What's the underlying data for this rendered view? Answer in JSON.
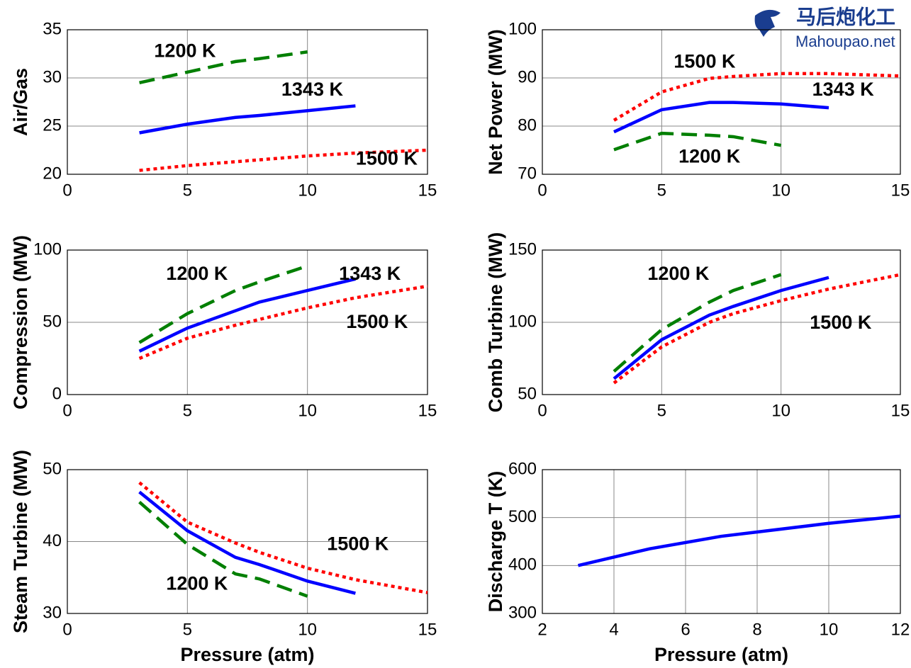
{
  "watermark": {
    "title": "马后炮化工",
    "url": "Mahoupao.net"
  },
  "chart_data": [
    {
      "type": "line",
      "ylabel": "Air/Gas",
      "x": [
        3,
        5,
        7,
        8,
        10,
        12,
        15
      ],
      "xlim": [
        0,
        15
      ],
      "xticks": [
        0,
        5,
        10,
        15
      ],
      "ylim": [
        20,
        35
      ],
      "yticks": [
        20,
        25,
        30,
        35
      ],
      "grid": true,
      "series": [
        {
          "name": "1200 K",
          "color": "#007f00",
          "style": "dashed",
          "values": [
            29.5,
            30.6,
            31.7,
            32.0,
            32.7,
            null,
            null
          ]
        },
        {
          "name": "1343 K",
          "color": "#0000ff",
          "style": "solid",
          "values": [
            24.3,
            25.2,
            25.9,
            26.1,
            26.6,
            27.1,
            null
          ]
        },
        {
          "name": "1500 K",
          "color": "#ff0000",
          "style": "dotted",
          "values": [
            20.4,
            20.9,
            21.3,
            21.5,
            21.9,
            22.2,
            22.5
          ]
        }
      ]
    },
    {
      "type": "line",
      "ylabel": "Net Power (MW)",
      "x": [
        3,
        5,
        7,
        8,
        10,
        12,
        15
      ],
      "xlim": [
        0,
        15
      ],
      "xticks": [
        0,
        5,
        10,
        15
      ],
      "ylim": [
        70,
        100
      ],
      "yticks": [
        70,
        80,
        90,
        100
      ],
      "grid": true,
      "series": [
        {
          "name": "1500 K",
          "color": "#ff0000",
          "style": "dotted",
          "values": [
            81.2,
            87.1,
            89.9,
            90.3,
            90.9,
            90.9,
            90.4
          ]
        },
        {
          "name": "1343 K",
          "color": "#0000ff",
          "style": "solid",
          "values": [
            78.8,
            83.4,
            84.9,
            84.9,
            84.6,
            83.8,
            null
          ]
        },
        {
          "name": "1200 K",
          "color": "#007f00",
          "style": "dashed",
          "values": [
            75.1,
            78.5,
            78.1,
            77.8,
            76.0,
            null,
            null
          ]
        }
      ]
    },
    {
      "type": "line",
      "ylabel": "Compression (MW)",
      "x": [
        3,
        5,
        7,
        8,
        10,
        12,
        15
      ],
      "xlim": [
        0,
        15
      ],
      "xticks": [
        0,
        5,
        10,
        15
      ],
      "ylim": [
        0,
        100
      ],
      "yticks": [
        0,
        50,
        100
      ],
      "grid": true,
      "series": [
        {
          "name": "1200 K",
          "color": "#007f00",
          "style": "dashed",
          "values": [
            36,
            56,
            72,
            78,
            89,
            null,
            null
          ]
        },
        {
          "name": "1343 K",
          "color": "#0000ff",
          "style": "solid",
          "values": [
            30,
            46,
            58,
            64,
            72,
            80,
            null
          ]
        },
        {
          "name": "1500 K",
          "color": "#ff0000",
          "style": "dotted",
          "values": [
            25,
            39,
            48,
            52,
            60,
            67,
            75
          ]
        }
      ]
    },
    {
      "type": "line",
      "ylabel": "Comb Turbine (MW)",
      "x": [
        3,
        5,
        7,
        8,
        10,
        12,
        15
      ],
      "xlim": [
        0,
        15
      ],
      "xticks": [
        0,
        5,
        10,
        15
      ],
      "ylim": [
        50,
        150
      ],
      "yticks": [
        50,
        100,
        150
      ],
      "grid": true,
      "series": [
        {
          "name": "1200 K",
          "color": "#007f00",
          "style": "dashed",
          "values": [
            66,
            95,
            114,
            122,
            133,
            null,
            null
          ]
        },
        {
          "color": "#0000ff",
          "style": "solid",
          "values": [
            61,
            88,
            105,
            111,
            122,
            131,
            null
          ]
        },
        {
          "name": "1500 K",
          "color": "#ff0000",
          "style": "dotted",
          "values": [
            58,
            83,
            100,
            106,
            115,
            123,
            133
          ]
        }
      ]
    },
    {
      "type": "line",
      "ylabel": "Steam Turbine (MW)",
      "xlabel": "Pressure (atm)",
      "x": [
        3,
        5,
        7,
        8,
        10,
        12,
        15
      ],
      "xlim": [
        0,
        15
      ],
      "xticks": [
        0,
        5,
        10,
        15
      ],
      "ylim": [
        30,
        50
      ],
      "yticks": [
        30,
        40,
        50
      ],
      "grid": true,
      "series": [
        {
          "name": "1500 K",
          "color": "#ff0000",
          "style": "dotted",
          "values": [
            48.2,
            42.7,
            39.8,
            38.5,
            36.3,
            34.7,
            32.9
          ]
        },
        {
          "color": "#0000ff",
          "style": "solid",
          "values": [
            46.9,
            41.5,
            37.8,
            36.8,
            34.5,
            32.8,
            null
          ]
        },
        {
          "name": "1200 K",
          "color": "#007f00",
          "style": "dashed",
          "values": [
            45.5,
            39.6,
            35.5,
            34.8,
            32.4,
            null,
            null
          ]
        }
      ]
    },
    {
      "type": "line",
      "ylabel": "Discharge T (K)",
      "xlabel": "Pressure (atm)",
      "x": [
        3,
        5,
        7,
        8,
        10,
        12
      ],
      "xlim": [
        2,
        12
      ],
      "xticks": [
        2,
        4,
        6,
        8,
        10,
        12
      ],
      "ylim": [
        300,
        600
      ],
      "yticks": [
        300,
        400,
        500,
        600
      ],
      "grid": true,
      "color": "#0000ff",
      "values": [
        400,
        435,
        461,
        470,
        488,
        503
      ]
    }
  ]
}
